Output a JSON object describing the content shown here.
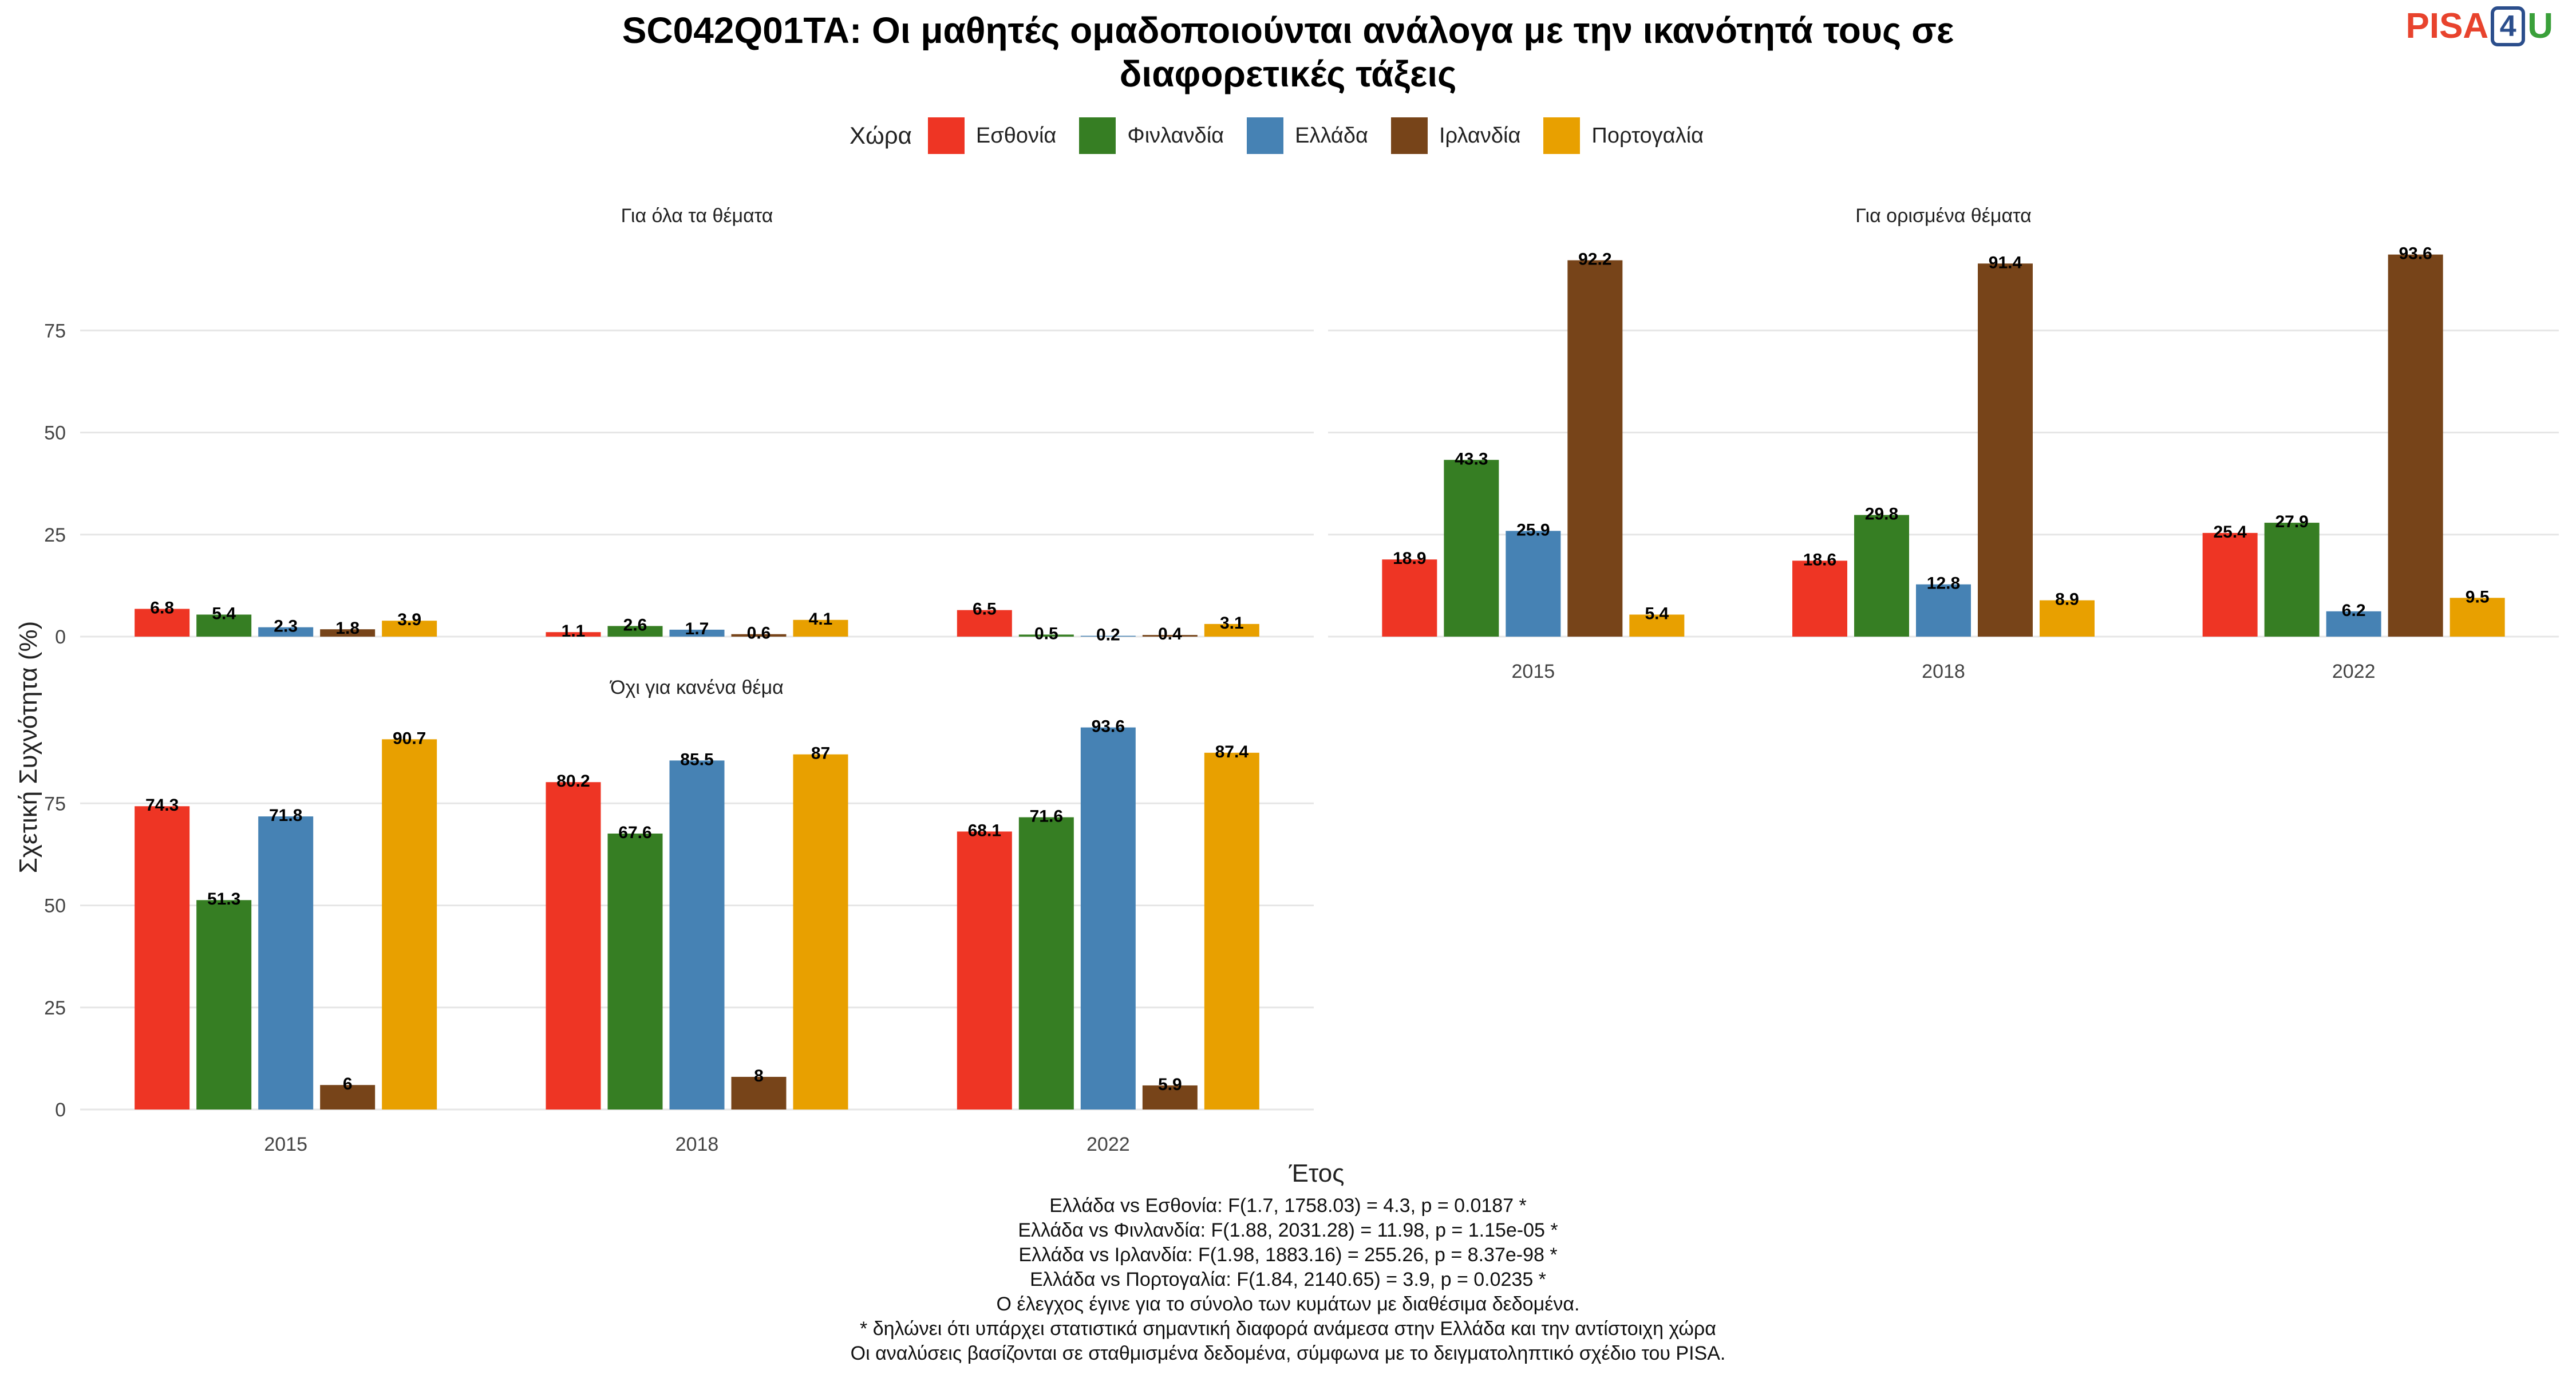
{
  "title_line1": "SC042Q01TA: Οι μαθητές ομαδοποιούνται ανάλογα με την ικανότητά τους σε",
  "title_line2": "διαφορετικές τάξεις",
  "logo": {
    "part1": "PISA",
    "part2": "4",
    "part3": "U"
  },
  "legend_title": "Χώρα",
  "colors": {
    "Εσθονία": "#EE3524",
    "Φινλανδία": "#367E23",
    "Ελλάδα": "#4682B4",
    "Ιρλανδία": "#774419",
    "Πορτογαλία": "#E8A000"
  },
  "chart_data": {
    "type": "bar",
    "xlabel": "Έτος",
    "ylabel": "Σχετική Συχνότητα (%)",
    "categories": [
      "2015",
      "2018",
      "2022"
    ],
    "yticks": [
      0,
      25,
      50,
      75
    ],
    "ylim": [
      0,
      100
    ],
    "legend_placement": "top",
    "panels": [
      {
        "title": "Για όλα τα θέματα",
        "series": [
          {
            "name": "Εσθονία",
            "values": [
              6.8,
              1.1,
              6.5
            ]
          },
          {
            "name": "Φινλανδία",
            "values": [
              5.4,
              2.6,
              0.5
            ]
          },
          {
            "name": "Ελλάδα",
            "values": [
              2.3,
              1.7,
              0.2
            ]
          },
          {
            "name": "Ιρλανδία",
            "values": [
              1.8,
              0.6,
              0.4
            ]
          },
          {
            "name": "Πορτογαλία",
            "values": [
              3.9,
              4.1,
              3.1
            ]
          }
        ]
      },
      {
        "title": "Για ορισμένα θέματα",
        "series": [
          {
            "name": "Εσθονία",
            "values": [
              18.9,
              18.6,
              25.4
            ]
          },
          {
            "name": "Φινλανδία",
            "values": [
              43.3,
              29.8,
              27.9
            ]
          },
          {
            "name": "Ελλάδα",
            "values": [
              25.9,
              12.8,
              6.2
            ]
          },
          {
            "name": "Ιρλανδία",
            "values": [
              92.2,
              91.4,
              93.6
            ]
          },
          {
            "name": "Πορτογαλία",
            "values": [
              5.4,
              8.9,
              9.5
            ]
          }
        ]
      },
      {
        "title": "Όχι για κανένα θέμα",
        "series": [
          {
            "name": "Εσθονία",
            "values": [
              74.3,
              80.2,
              68.1
            ]
          },
          {
            "name": "Φινλανδία",
            "values": [
              51.3,
              67.6,
              71.6
            ]
          },
          {
            "name": "Ελλάδα",
            "values": [
              71.8,
              85.5,
              93.6
            ]
          },
          {
            "name": "Ιρλανδία",
            "values": [
              6,
              8,
              5.9
            ]
          },
          {
            "name": "Πορτογαλία",
            "values": [
              90.7,
              87,
              87.4
            ]
          }
        ]
      }
    ]
  },
  "notes": [
    "Ελλάδα vs Εσθονία: F(1.7, 1758.03) = 4.3, p = 0.0187 *",
    "Ελλάδα vs Φινλανδία: F(1.88, 2031.28) = 11.98, p = 1.15e-05 *",
    "Ελλάδα vs Ιρλανδία: F(1.98, 1883.16) = 255.26, p = 8.37e-98 *",
    "Ελλάδα vs Πορτογαλία: F(1.84, 2140.65) = 3.9, p = 0.0235 *",
    "Ο έλεγχος έγινε για το σύνολο των κυμάτων με διαθέσιμα δεδομένα.",
    "* δηλώνει ότι υπάρχει στατιστικά σημαντική διαφορά ανάμεσα στην Ελλάδα και την αντίστοιχη χώρα",
    "Οι αναλύσεις βασίζονται σε σταθμισμένα δεδομένα, σύμφωνα με το δειγματοληπτικό σχέδιο του PISA."
  ]
}
